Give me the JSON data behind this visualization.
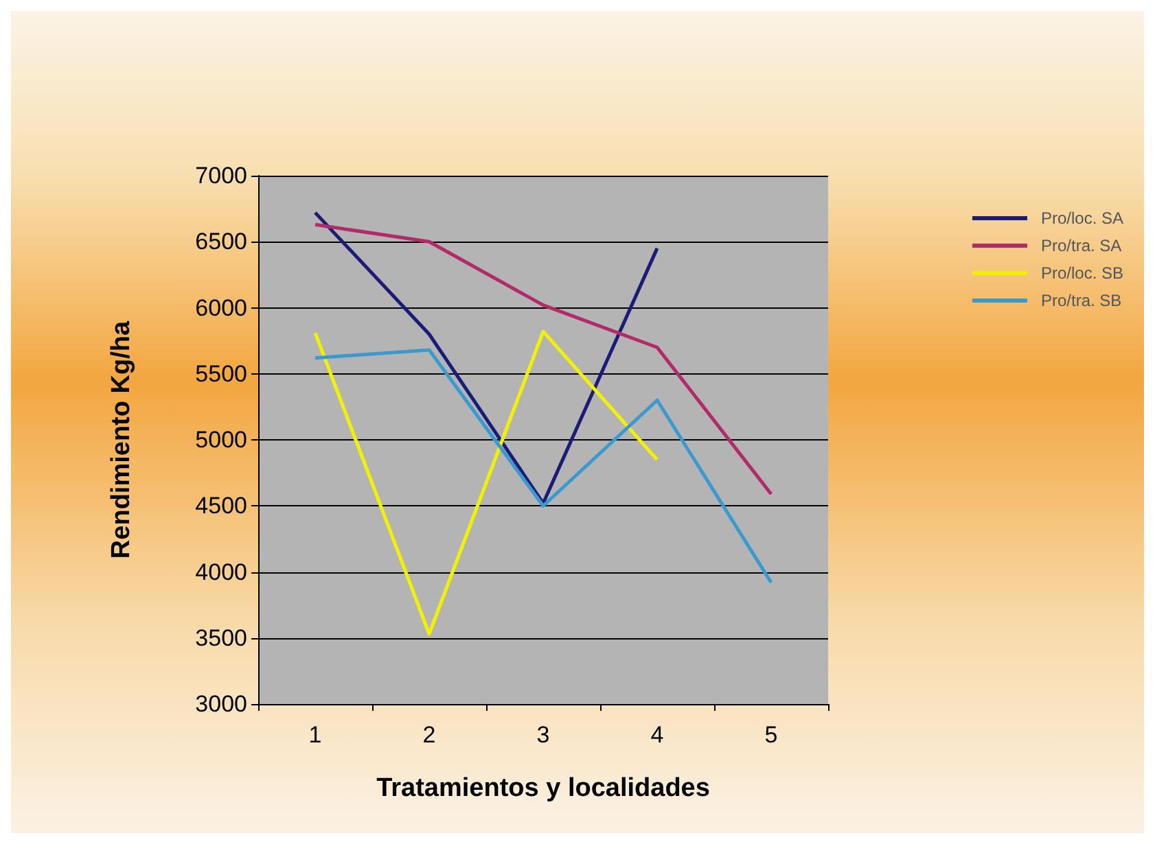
{
  "chart_data": {
    "type": "line",
    "xlabel": "Tratamientos y localidades",
    "ylabel": "Rendimiento Kg/ha",
    "categories": [
      "1",
      "2",
      "3",
      "4",
      "5"
    ],
    "series": [
      {
        "name": "Pro/loc. SA",
        "color": "#1c1c78",
        "values": [
          6720,
          5800,
          4520,
          6450,
          null
        ]
      },
      {
        "name": "Pro/tra. SA",
        "color": "#b32a6a",
        "values": [
          6630,
          6500,
          6020,
          5700,
          4590
        ]
      },
      {
        "name": "Pro/loc. SB",
        "color": "#f2f200",
        "values": [
          5810,
          3530,
          5820,
          4850,
          null
        ]
      },
      {
        "name": "Pro/tra. SB",
        "color": "#3a9ad0",
        "values": [
          5620,
          5680,
          4500,
          5300,
          3920
        ]
      }
    ],
    "ylim": [
      3000,
      7000
    ],
    "yticks": [
      3000,
      3500,
      4000,
      4500,
      5000,
      5500,
      6000,
      6500,
      7000
    ],
    "grid": "y",
    "legend": "right",
    "marker": "none",
    "line_style": "solid"
  }
}
